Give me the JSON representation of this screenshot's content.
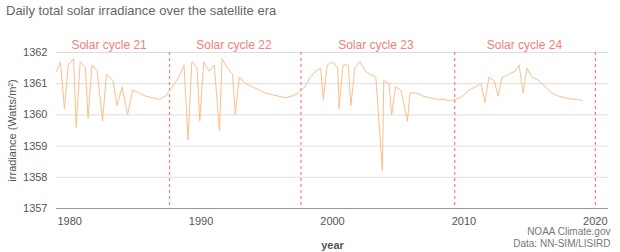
{
  "chart_data": {
    "type": "line",
    "title": "Daily total solar irradiance over the satellite era",
    "x_label": "year",
    "y_label": "irradiance (Watts/m²)",
    "color": "#fdbf8a",
    "xlim": [
      1979,
      2021
    ],
    "xticks": [
      1980,
      1990,
      2000,
      2010,
      2020
    ],
    "ylim": [
      1357,
      1362
    ],
    "yticks": [
      1357,
      1358,
      1359,
      1360,
      1361,
      1362
    ],
    "grid": true,
    "x": [
      1979.0,
      1979.3,
      1979.6,
      1979.9,
      1980.3,
      1980.5,
      1980.8,
      1981.2,
      1981.4,
      1981.7,
      1982.1,
      1982.5,
      1982.8,
      1983.3,
      1983.6,
      1984.0,
      1984.4,
      1984.8,
      1985.3,
      1985.8,
      1986.3,
      1986.8,
      1987.3,
      1987.8,
      1988.3,
      1988.7,
      1989.0,
      1989.3,
      1989.7,
      1989.9,
      1990.2,
      1990.6,
      1991.0,
      1991.4,
      1991.6,
      1992.0,
      1992.4,
      1992.6,
      1992.9,
      1993.4,
      1993.9,
      1994.4,
      1994.9,
      1995.4,
      1995.9,
      1996.4,
      1996.9,
      1997.4,
      1997.9,
      1998.3,
      1998.7,
      1999.1,
      1999.3,
      1999.6,
      2000.0,
      2000.4,
      2000.5,
      2000.8,
      2001.2,
      2001.4,
      2001.7,
      2002.1,
      2002.5,
      2002.9,
      2003.3,
      2003.8,
      2003.9,
      2004.3,
      2004.5,
      2004.8,
      2005.2,
      2005.7,
      2005.9,
      2006.4,
      2006.9,
      2007.4,
      2007.9,
      2008.4,
      2008.9,
      2009.4,
      2009.9,
      2010.4,
      2010.9,
      2011.3,
      2011.6,
      2011.9,
      2012.3,
      2012.6,
      2012.9,
      2013.4,
      2013.9,
      2014.2,
      2014.5,
      2014.8,
      2015.2,
      2015.7,
      2016.2,
      2016.7,
      2017.2,
      2017.7,
      2018.2,
      2018.7,
      2019.0
    ],
    "values": [
      1361.4,
      1361.7,
      1360.2,
      1361.6,
      1361.8,
      1359.6,
      1361.7,
      1361.5,
      1359.9,
      1361.6,
      1361.4,
      1359.8,
      1361.3,
      1361.1,
      1360.3,
      1360.9,
      1360.0,
      1360.8,
      1360.7,
      1360.6,
      1360.55,
      1360.5,
      1360.6,
      1360.9,
      1361.2,
      1361.6,
      1359.2,
      1361.7,
      1361.5,
      1359.8,
      1361.7,
      1361.4,
      1361.6,
      1359.5,
      1361.8,
      1361.5,
      1361.3,
      1360.0,
      1361.2,
      1361.0,
      1360.9,
      1360.8,
      1360.7,
      1360.65,
      1360.6,
      1360.55,
      1360.6,
      1360.7,
      1360.9,
      1361.2,
      1361.4,
      1361.5,
      1360.5,
      1361.6,
      1361.7,
      1361.5,
      1360.2,
      1361.6,
      1361.6,
      1360.3,
      1361.5,
      1361.7,
      1361.4,
      1361.3,
      1361.2,
      1358.2,
      1361.1,
      1361.0,
      1360.0,
      1360.9,
      1360.8,
      1359.8,
      1360.7,
      1360.7,
      1360.6,
      1360.55,
      1360.5,
      1360.5,
      1360.45,
      1360.5,
      1360.6,
      1360.8,
      1360.9,
      1361.0,
      1360.4,
      1361.2,
      1361.1,
      1360.6,
      1361.2,
      1361.3,
      1361.4,
      1361.6,
      1360.7,
      1361.5,
      1361.2,
      1361.1,
      1360.9,
      1360.7,
      1360.6,
      1360.55,
      1360.5,
      1360.5,
      1360.45
    ],
    "cycle_boundaries": [
      1987.6,
      1997.6,
      2009.3,
      2020.0
    ],
    "annotations": [
      {
        "text": "Solar cycle 21",
        "x": 1983.0
      },
      {
        "text": "Solar cycle 22",
        "x": 1992.5
      },
      {
        "text": "Solar cycle 23",
        "x": 2003.3
      },
      {
        "text": "Solar cycle 24",
        "x": 2014.6
      }
    ],
    "source": [
      "NOAA Climate.gov",
      "Data: NN-SIM/LISIRD"
    ]
  }
}
